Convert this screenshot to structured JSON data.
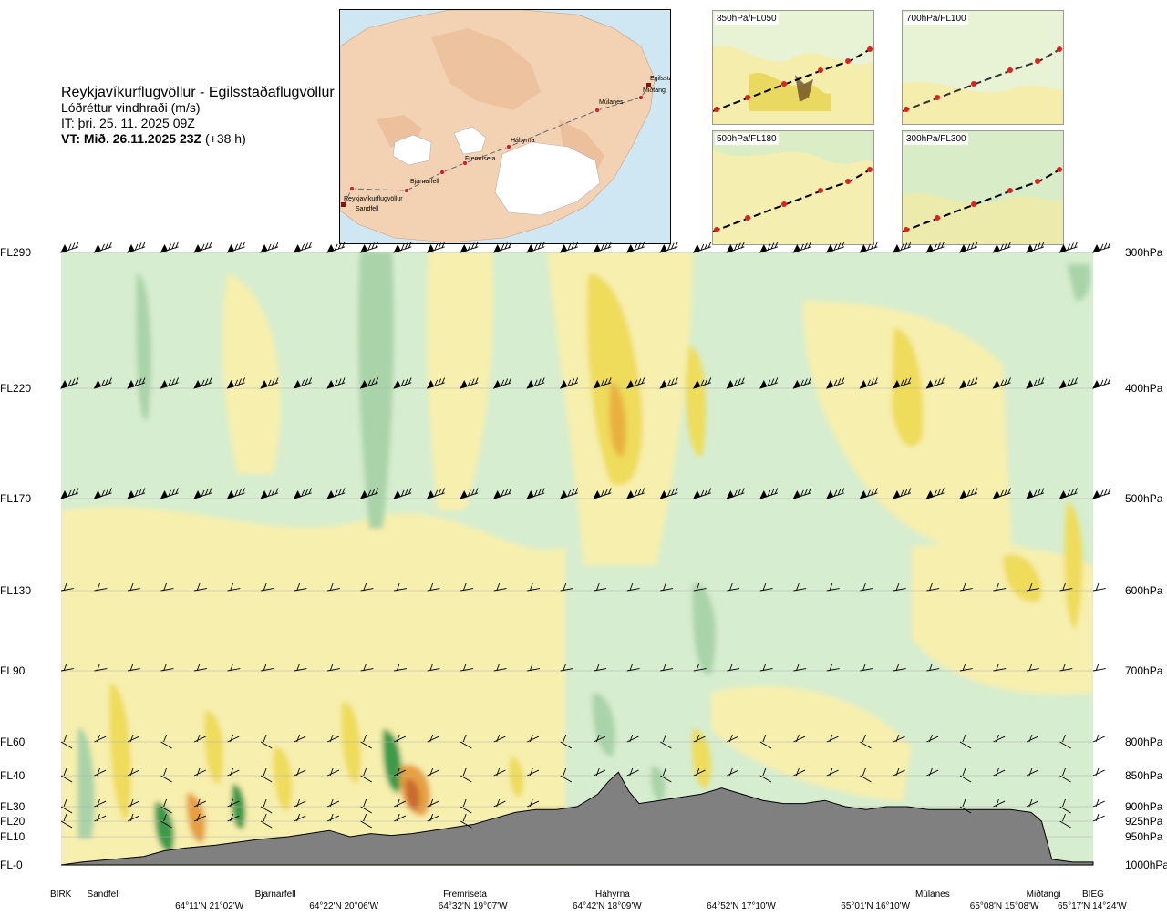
{
  "header": {
    "route": "Reykjavíkurflugvöllur - Egilsstaðaflugvöllur",
    "variable": "Lóðréttur vindhraði (m/s)",
    "issue_time": "IT: þri. 25. 11. 2025 09Z",
    "valid_label": "VT: Mið. 26.11.2025 23Z",
    "valid_offset": "(+38 h)"
  },
  "route_map": {
    "stations": [
      "Reykjavíkurflugvöllur",
      "Sandfell",
      "Bjarnarfell",
      "Fremriseta",
      "Háhyrna",
      "Múlanes",
      "Egilsstaðir",
      "Miðtangi"
    ]
  },
  "mini_maps": [
    {
      "label": "850hPa/FL050"
    },
    {
      "label": "700hPa/FL100"
    },
    {
      "label": "500hPa/FL180"
    },
    {
      "label": "300hPa/FL300"
    }
  ],
  "chart_data": {
    "type": "heatmap",
    "title": "Lóðréttur vindhraði (m/s)",
    "y_left_ticks": [
      "FL290",
      "FL220",
      "FL170",
      "FL130",
      "FL90",
      "FL60",
      "FL40",
      "FL30",
      "FL20",
      "FL10",
      "FL-0"
    ],
    "y_right_ticks": [
      "300hPa",
      "400hPa",
      "500hPa",
      "600hPa",
      "700hPa",
      "800hPa",
      "850hPa",
      "900hPa",
      "925hPa",
      "950hPa",
      "1000hPa"
    ],
    "pressure_levels_hpa": [
      300,
      400,
      500,
      600,
      700,
      800,
      850,
      900,
      925,
      950,
      1000
    ],
    "ylim_hpa": [
      1000,
      300
    ],
    "x_locations": [
      "BIRK",
      "Sandfell",
      "Bjarnarfell",
      "Fremriseta",
      "Háhyrna",
      "Múlanes",
      "Miðtangi",
      "BIEG"
    ],
    "x_location_pos": [
      0.0,
      0.045,
      0.215,
      0.395,
      0.535,
      0.845,
      0.955,
      1.0
    ],
    "x_coordinates": [
      "64°11'N 21°02'W",
      "64°22'N 20°06'W",
      "64°32'N 19°07'W",
      "64°42'N 18°09'W",
      "64°52'N 17°10'W",
      "65°01'N 16°10'W",
      "65°08'N 15°08'W",
      "65°17'N 14°24'W"
    ],
    "x_coordinate_pos": [
      0.145,
      0.275,
      0.4,
      0.53,
      0.66,
      0.79,
      0.915,
      1.0
    ],
    "terrain_profile": {
      "x": [
        0,
        0.02,
        0.05,
        0.08,
        0.1,
        0.12,
        0.15,
        0.17,
        0.19,
        0.22,
        0.24,
        0.26,
        0.28,
        0.3,
        0.32,
        0.34,
        0.36,
        0.38,
        0.4,
        0.42,
        0.44,
        0.46,
        0.48,
        0.5,
        0.52,
        0.53,
        0.54,
        0.55,
        0.56,
        0.58,
        0.6,
        0.62,
        0.64,
        0.66,
        0.68,
        0.7,
        0.72,
        0.74,
        0.76,
        0.78,
        0.8,
        0.82,
        0.84,
        0.86,
        0.88,
        0.9,
        0.92,
        0.94,
        0.95,
        0.96,
        0.98,
        1.0
      ],
      "p": [
        1000,
        995,
        990,
        985,
        975,
        970,
        965,
        960,
        955,
        950,
        945,
        940,
        950,
        945,
        948,
        945,
        940,
        935,
        930,
        920,
        910,
        905,
        905,
        900,
        880,
        860,
        845,
        875,
        895,
        890,
        885,
        880,
        870,
        880,
        890,
        895,
        895,
        890,
        900,
        905,
        900,
        900,
        905,
        905,
        905,
        905,
        905,
        910,
        925,
        990,
        995,
        995
      ]
    },
    "wind_levels_hpa": [
      300,
      400,
      500,
      600,
      700,
      800,
      850,
      900,
      925
    ]
  }
}
